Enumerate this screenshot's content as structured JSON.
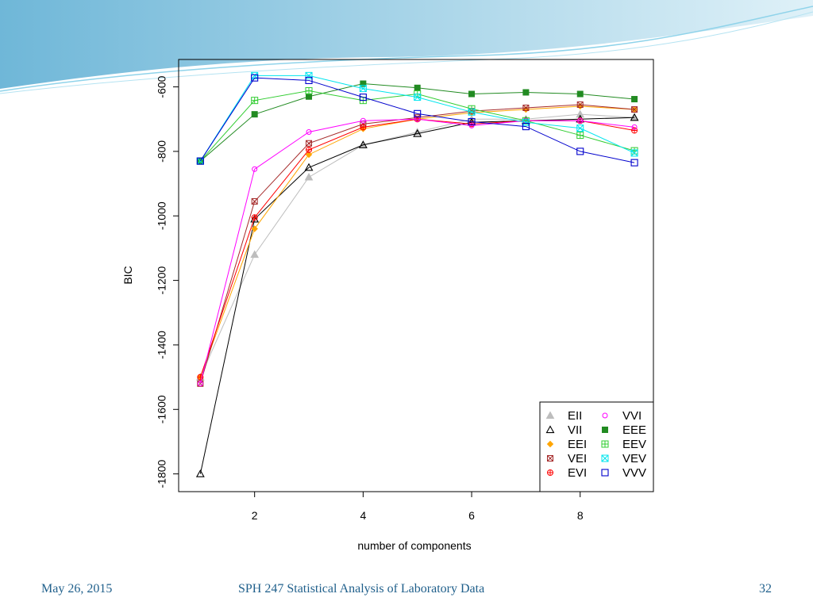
{
  "colors": {
    "banner_dark": "#6fb7d8",
    "banner_light": "#dff1f8",
    "footer_text": "#1f5f8b"
  },
  "footer": {
    "date": "May 26, 2015",
    "course": "SPH 247 Statistical Analysis of Laboratory Data",
    "page": "32"
  },
  "chart_data": {
    "type": "line",
    "title": "",
    "xlabel": "number of components",
    "ylabel": "BIC",
    "xlim": [
      0.6,
      9.35
    ],
    "ylim": [
      -1855,
      -515
    ],
    "x": [
      1,
      2,
      3,
      4,
      5,
      6,
      7,
      8,
      9
    ],
    "xticks": [
      2,
      4,
      6,
      8
    ],
    "yticks": [
      -1800,
      -1600,
      -1400,
      -1200,
      -1000,
      -800,
      -600
    ],
    "legend_position": "bottom-right",
    "grid": false,
    "series": [
      {
        "name": "EII",
        "marker": "filled-triangle",
        "color": "#bdbdbd",
        "values": [
          -1500,
          -1120,
          -880,
          -780,
          -740,
          -700,
          -700,
          -685,
          -695
        ]
      },
      {
        "name": "VII",
        "marker": "open-triangle",
        "color": "#000000",
        "values": [
          -1800,
          -1010,
          -850,
          -780,
          -745,
          -710,
          -705,
          -700,
          -695
        ]
      },
      {
        "name": "EEI",
        "marker": "filled-diamond",
        "color": "#ffa500",
        "values": [
          -1500,
          -1040,
          -810,
          -730,
          -700,
          -680,
          -670,
          -660,
          -670
        ]
      },
      {
        "name": "VEI",
        "marker": "x-square",
        "color": "#a52a2a",
        "values": [
          -1520,
          -955,
          -775,
          -715,
          -695,
          -675,
          -665,
          -655,
          -670
        ]
      },
      {
        "name": "EVI",
        "marker": "plus-circle",
        "color": "#ff0000",
        "values": [
          -1500,
          -1005,
          -795,
          -725,
          -700,
          -715,
          -705,
          -705,
          -735
        ]
      },
      {
        "name": "VVI",
        "marker": "open-circle",
        "color": "#ff00ff",
        "values": [
          -1520,
          -855,
          -740,
          -705,
          -700,
          -720,
          -705,
          -705,
          -725
        ]
      },
      {
        "name": "EEE",
        "marker": "filled-square",
        "color": "#228b22",
        "values": [
          -830,
          -685,
          -630,
          -590,
          -603,
          -622,
          -617,
          -622,
          -638
        ]
      },
      {
        "name": "EEV",
        "marker": "plus-square",
        "color": "#32cd32",
        "values": [
          -830,
          -642,
          -612,
          -642,
          -622,
          -668,
          -705,
          -750,
          -798
        ]
      },
      {
        "name": "VEV",
        "marker": "x-square-open",
        "color": "#00e5ee",
        "values": [
          -830,
          -565,
          -565,
          -605,
          -632,
          -678,
          -710,
          -728,
          -805
        ]
      },
      {
        "name": "VVV",
        "marker": "open-square",
        "color": "#0000cd",
        "values": [
          -830,
          -572,
          -580,
          -632,
          -683,
          -708,
          -723,
          -800,
          -835
        ]
      }
    ]
  }
}
